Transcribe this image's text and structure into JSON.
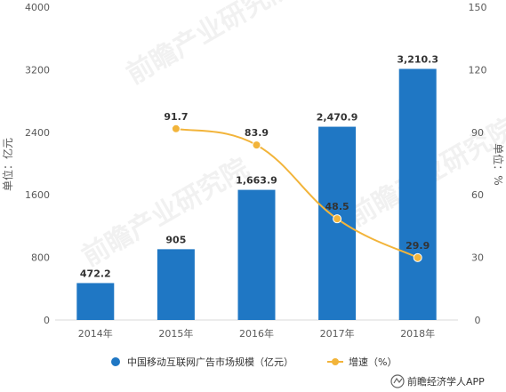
{
  "chart_data": {
    "type": "bar",
    "categories": [
      "2014年",
      "2015年",
      "2016年",
      "2017年",
      "2018年"
    ],
    "series": [
      {
        "name": "中国移动互联网广告市场规模（亿元）",
        "type": "bar",
        "axis": "left",
        "color": "#1f77c4",
        "values": [
          472.2,
          905,
          1663.9,
          2470.9,
          3210.3
        ],
        "labels": [
          "472.2",
          "905",
          "1,663.9",
          "2,470.9",
          "3,210.3"
        ]
      },
      {
        "name": "增速（%）",
        "type": "line",
        "axis": "right",
        "color": "#f2b43a",
        "values": [
          null,
          91.7,
          83.9,
          48.5,
          29.9
        ],
        "labels": [
          "",
          "91.7",
          "83.9",
          "48.5",
          "29.9"
        ]
      }
    ],
    "ylabel": "单位：亿元",
    "y2label": "单位：%",
    "ylim": [
      0,
      4000
    ],
    "y2lim": [
      0,
      150
    ],
    "yticks": [
      "0",
      "800",
      "1600",
      "2400",
      "3200",
      "4000"
    ],
    "y2ticks": [
      "0",
      "30",
      "60",
      "90",
      "120",
      "150"
    ],
    "grid": false,
    "legend": "bottom"
  },
  "watermark": "前瞻产业研究院",
  "credit": "前瞻经济学人APP"
}
